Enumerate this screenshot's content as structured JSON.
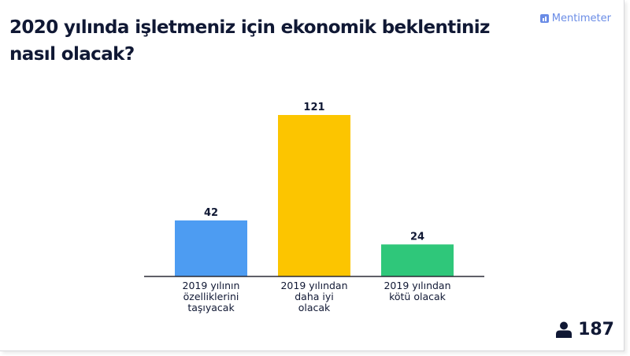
{
  "slide": {
    "question": "2020 yılında işletmeniz için ekonomik beklentiniz nasıl olacak?",
    "brand": "Mentimeter",
    "participant_count": "187"
  },
  "colors": {
    "bar_1": "#4d9cf2",
    "bar_2": "#fcc500",
    "bar_3": "#2fc77a",
    "axis": "#2a2a35",
    "text": "#101834",
    "brand": "#6a8ce6"
  },
  "icons": {
    "brand": "mentimeter-logo-icon",
    "participants": "person-icon"
  },
  "chart_data": {
    "type": "bar",
    "title": "2020 yılında işletmeniz için ekonomik beklentiniz nasıl olacak?",
    "categories": [
      [
        "2019 yılının",
        "özelliklerini",
        "taşıyacak"
      ],
      [
        "2019 yılından",
        "daha iyi",
        "olacak"
      ],
      [
        "2019 yılından",
        "kötü olacak"
      ]
    ],
    "values": [
      42,
      121,
      24
    ],
    "ylim": [
      0,
      121
    ],
    "grid": false,
    "legend": "none"
  }
}
